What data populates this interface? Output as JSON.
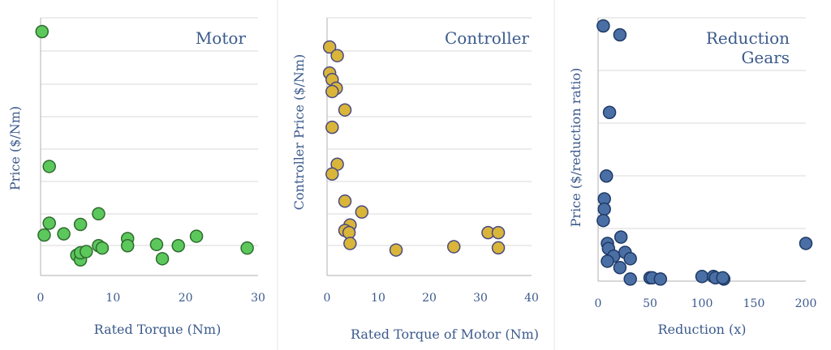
{
  "chart_data": [
    {
      "type": "scatter",
      "title": "Motor",
      "xlabel": "Rated Torque (Nm)",
      "ylabel": "Price ($/Nm)",
      "xlim": [
        0,
        30
      ],
      "x_ticks": [
        "0",
        "10",
        "20",
        "30"
      ],
      "y_labels_shown": false,
      "grid": "horizontal",
      "color": "#5cc85c",
      "edge_color": "#2e6b2e",
      "points": [
        {
          "x": 0.2,
          "y": 100
        },
        {
          "x": 1.2,
          "y": 43
        },
        {
          "x": 0.5,
          "y": 14
        },
        {
          "x": 1.2,
          "y": 19
        },
        {
          "x": 3.2,
          "y": 14.5
        },
        {
          "x": 5.5,
          "y": 18.5
        },
        {
          "x": 8.0,
          "y": 23
        },
        {
          "x": 8.0,
          "y": 9.5
        },
        {
          "x": 8.5,
          "y": 8.5
        },
        {
          "x": 5.0,
          "y": 5.5
        },
        {
          "x": 5.5,
          "y": 3.5
        },
        {
          "x": 5.5,
          "y": 6.5
        },
        {
          "x": 6.3,
          "y": 7
        },
        {
          "x": 12.0,
          "y": 12.5
        },
        {
          "x": 12.0,
          "y": 9.5
        },
        {
          "x": 16.0,
          "y": 10
        },
        {
          "x": 16.8,
          "y": 4
        },
        {
          "x": 19.0,
          "y": 9.5
        },
        {
          "x": 21.5,
          "y": 13.5
        },
        {
          "x": 28.5,
          "y": 8.5
        }
      ]
    },
    {
      "type": "scatter",
      "title": "Controller",
      "xlabel": "Rated Torque of Motor (Nm)",
      "ylabel": "Controller Price ($/Nm)",
      "xlim": [
        0,
        40
      ],
      "x_ticks": [
        "0",
        "10",
        "20",
        "30",
        "40"
      ],
      "y_labels_shown": false,
      "grid": "horizontal",
      "color": "#d9b53a",
      "edge_color": "#4a4a80",
      "points": [
        {
          "x": 0.5,
          "y": 100
        },
        {
          "x": 2.0,
          "y": 96
        },
        {
          "x": 0.5,
          "y": 88
        },
        {
          "x": 1.0,
          "y": 85
        },
        {
          "x": 1.8,
          "y": 81
        },
        {
          "x": 1.0,
          "y": 79.5
        },
        {
          "x": 3.5,
          "y": 71
        },
        {
          "x": 1.0,
          "y": 63
        },
        {
          "x": 2.0,
          "y": 46
        },
        {
          "x": 1.0,
          "y": 41.5
        },
        {
          "x": 3.5,
          "y": 29
        },
        {
          "x": 6.8,
          "y": 24
        },
        {
          "x": 4.5,
          "y": 18
        },
        {
          "x": 3.5,
          "y": 15.5
        },
        {
          "x": 4.3,
          "y": 14.5
        },
        {
          "x": 4.5,
          "y": 9.5
        },
        {
          "x": 13.5,
          "y": 6.5
        },
        {
          "x": 24.8,
          "y": 8
        },
        {
          "x": 31.5,
          "y": 14.5
        },
        {
          "x": 33.5,
          "y": 14.5
        },
        {
          "x": 33.5,
          "y": 7.5
        }
      ]
    },
    {
      "type": "scatter",
      "title": "Reduction Gears",
      "title_lines": [
        "Reduction",
        "Gears"
      ],
      "xlabel": "Reduction (x)",
      "ylabel": "Price ($/reduction ratio)",
      "xlim": [
        0,
        200
      ],
      "x_ticks": [
        "0",
        "50",
        "100",
        "150",
        "200"
      ],
      "y_labels_shown": false,
      "grid": "horizontal",
      "color": "#4a6fa5",
      "edge_color": "#1f3a66",
      "points": [
        {
          "x": 5,
          "y": 100
        },
        {
          "x": 21,
          "y": 96.5
        },
        {
          "x": 11,
          "y": 66
        },
        {
          "x": 8,
          "y": 41
        },
        {
          "x": 6,
          "y": 32
        },
        {
          "x": 6,
          "y": 28
        },
        {
          "x": 5,
          "y": 23.5
        },
        {
          "x": 22,
          "y": 17
        },
        {
          "x": 9,
          "y": 14.5
        },
        {
          "x": 10,
          "y": 12.5
        },
        {
          "x": 15,
          "y": 9.5
        },
        {
          "x": 26,
          "y": 11
        },
        {
          "x": 31,
          "y": 8.5
        },
        {
          "x": 9,
          "y": 7.5
        },
        {
          "x": 21,
          "y": 5
        },
        {
          "x": 31,
          "y": 0.5
        },
        {
          "x": 50,
          "y": 1
        },
        {
          "x": 52,
          "y": 1
        },
        {
          "x": 60,
          "y": 0.5
        },
        {
          "x": 100,
          "y": 1.5
        },
        {
          "x": 111,
          "y": 1.5
        },
        {
          "x": 113,
          "y": 1
        },
        {
          "x": 121,
          "y": 0.5
        },
        {
          "x": 120,
          "y": 1
        },
        {
          "x": 200,
          "y": 14.5
        }
      ]
    }
  ]
}
